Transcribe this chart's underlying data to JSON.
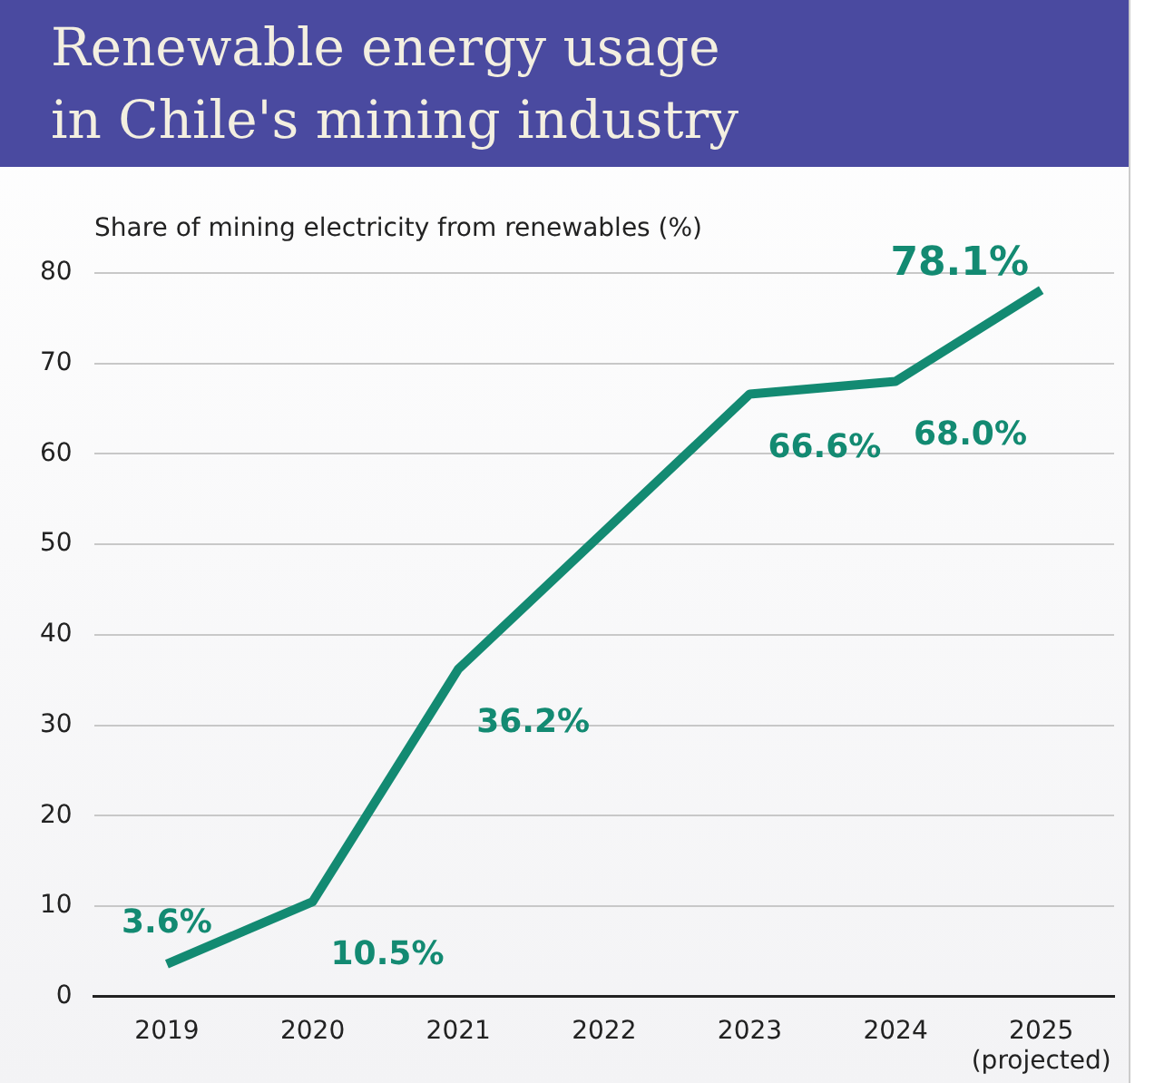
{
  "chart_data": {
    "type": "line",
    "title": "Renewable energy usage\nin Chile's mining industry",
    "ylabel": "Share of mining electricity from renewables (%)",
    "categories": [
      "2019",
      "2020",
      "2021",
      "2022",
      "2023",
      "2024",
      "2025\n(projected)"
    ],
    "series": [
      {
        "color": "#138a72",
        "values": [
          3.6,
          10.5,
          36.2,
          51.4,
          66.6,
          68.0,
          78.1
        ],
        "value_labels": [
          "3.6%",
          "10.5%",
          "36.2%",
          null,
          "66.6%",
          "68.0%",
          "78.1%"
        ]
      }
    ],
    "ylim": [
      0,
      80
    ],
    "yticks": [
      0,
      10,
      20,
      30,
      40,
      50,
      60,
      70,
      80
    ],
    "grid": "y",
    "legend": false,
    "marker": "none",
    "line_style": "solid"
  }
}
